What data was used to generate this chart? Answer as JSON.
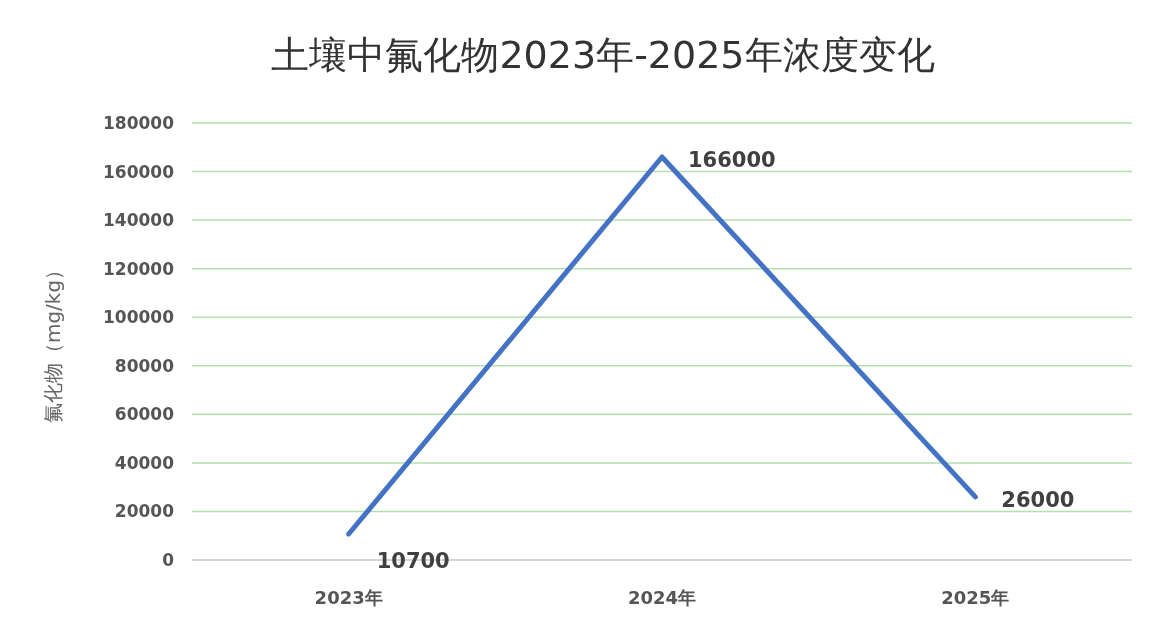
{
  "chart_data": {
    "type": "line",
    "title": "土壤中氟化物2023年-2025年浓度变化",
    "ylabel": "氟化物（mg/kg）",
    "categories": [
      "2023年",
      "2024年",
      "2025年"
    ],
    "series": [
      {
        "color": "#4472c4",
        "values": [
          10700,
          166000,
          26000
        ]
      }
    ],
    "ylim": [
      0,
      180000
    ],
    "yticks": [
      0,
      20000,
      40000,
      60000,
      80000,
      100000,
      120000,
      140000,
      160000,
      180000
    ],
    "grid": "y",
    "data_labels": true
  }
}
